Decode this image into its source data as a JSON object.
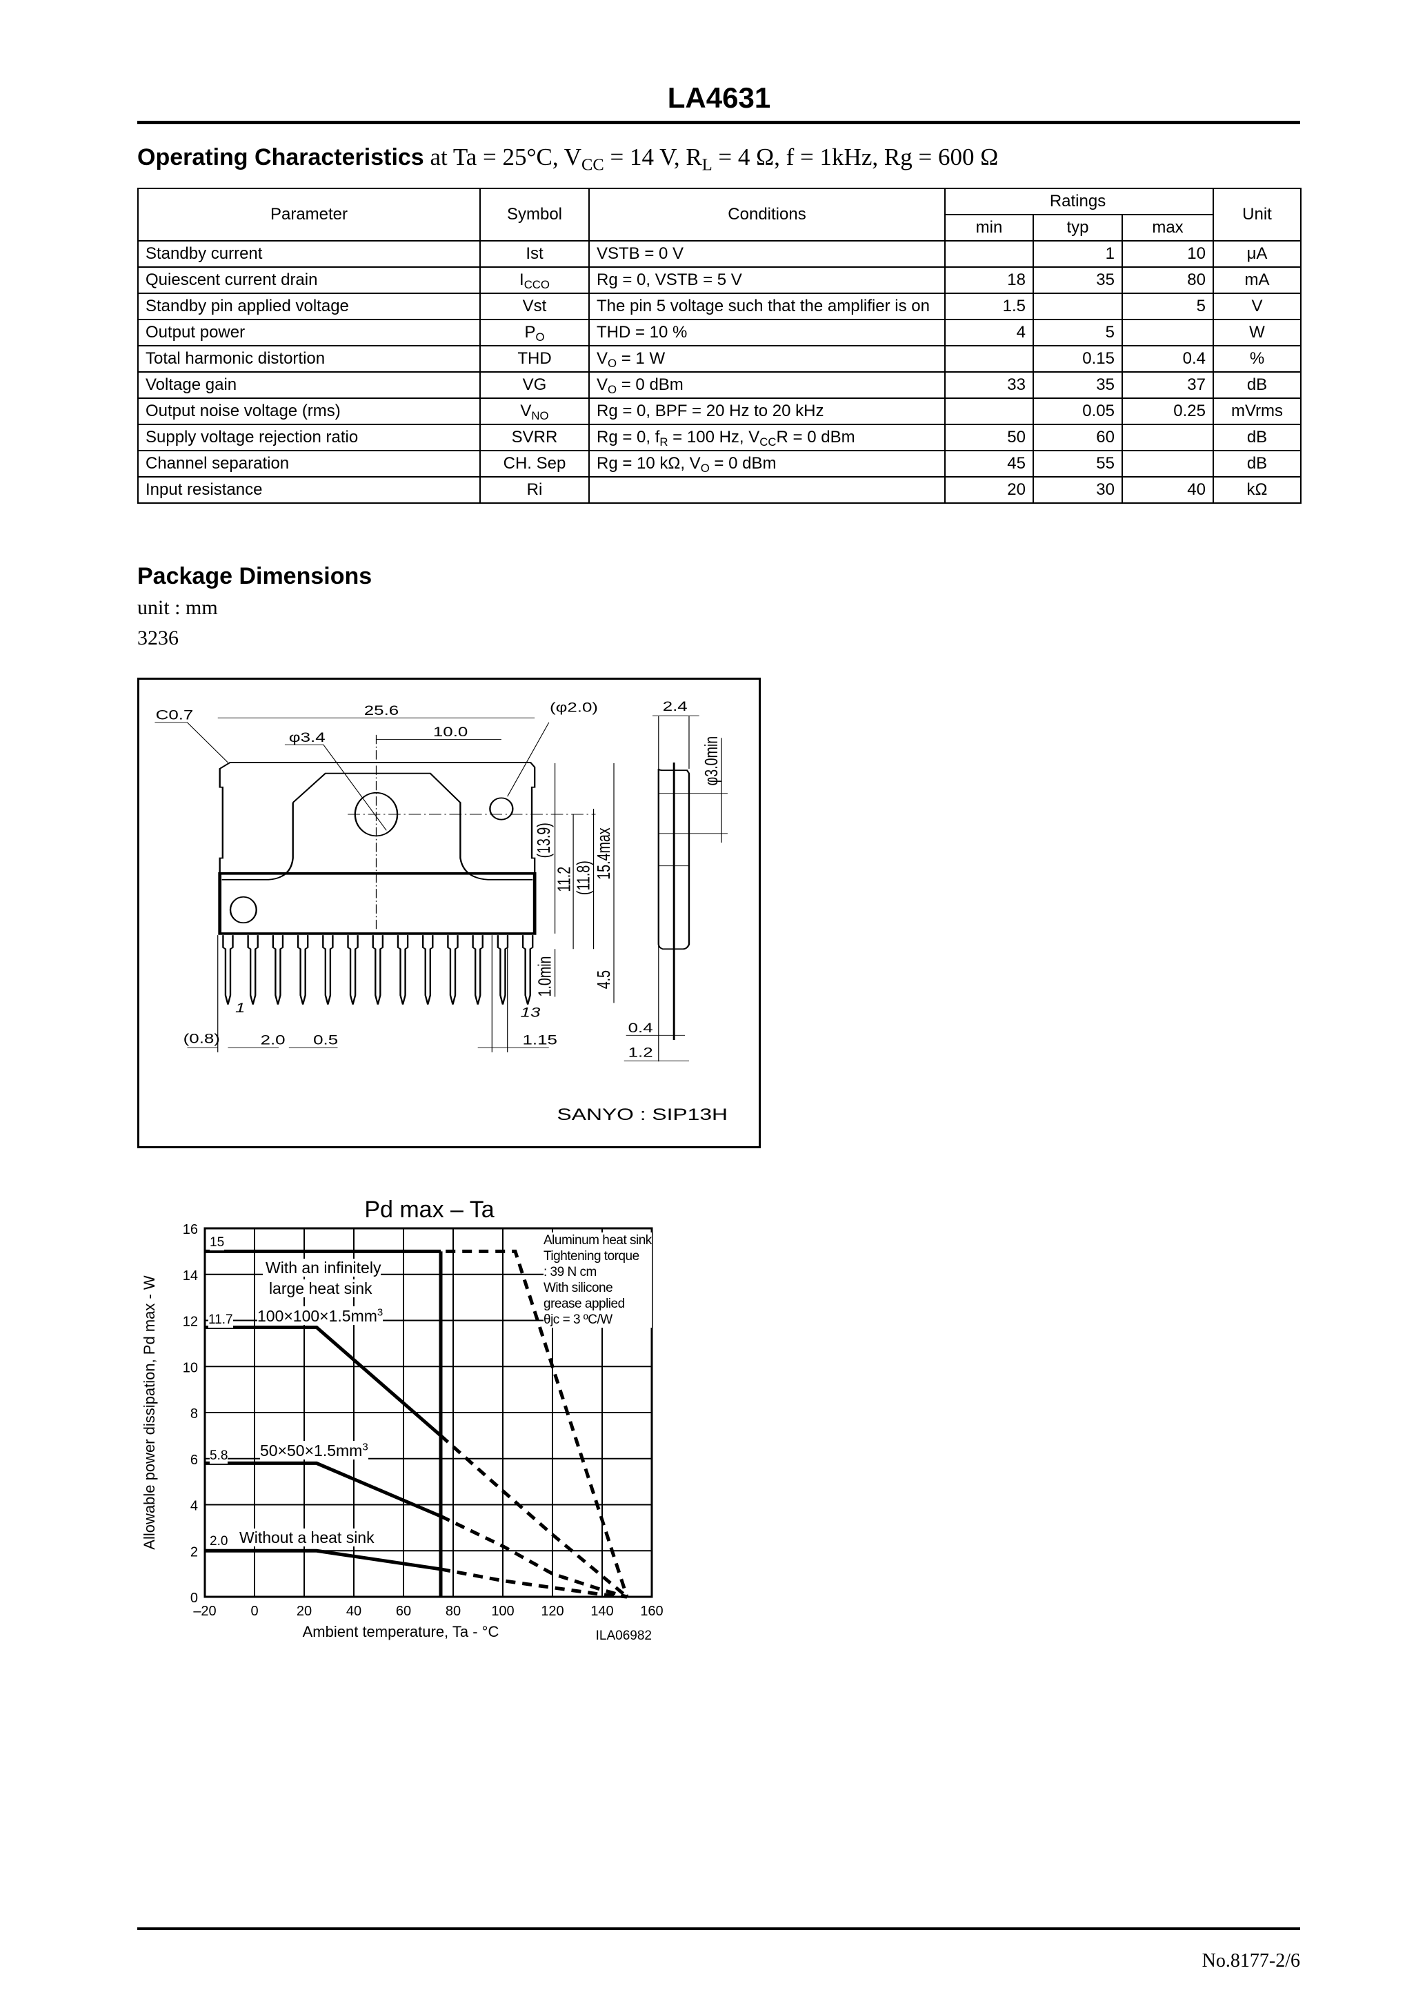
{
  "header": {
    "title": "LA4631"
  },
  "operating": {
    "heading_bold": "Operating Characteristics",
    "heading_rest": [
      {
        "t": " at Ta = 25°C, V"
      },
      {
        "s": "CC"
      },
      {
        "t": " = 14 V, R"
      },
      {
        "s": "L"
      },
      {
        "t": " = 4 Ω, f = 1kHz, Rg = 600 Ω"
      }
    ],
    "columns": {
      "parameter": "Parameter",
      "symbol": "Symbol",
      "conditions": "Conditions",
      "ratings": "Ratings",
      "min": "min",
      "typ": "typ",
      "max": "max",
      "unit": "Unit"
    },
    "rows": [
      {
        "parameter": "Standby current",
        "symbol": [
          {
            "t": "Ist"
          }
        ],
        "conditions": [
          {
            "t": "VSTB = 0 V"
          }
        ],
        "min": "",
        "typ": "1",
        "max": "10",
        "unit": "μA"
      },
      {
        "parameter": "Quiescent current drain",
        "symbol": [
          {
            "t": "I"
          },
          {
            "s": "CCO"
          }
        ],
        "conditions": [
          {
            "t": "Rg = 0, VSTB = 5 V"
          }
        ],
        "min": "18",
        "typ": "35",
        "max": "80",
        "unit": "mA"
      },
      {
        "parameter": "Standby pin applied voltage",
        "symbol": [
          {
            "t": "Vst"
          }
        ],
        "conditions": [
          {
            "t": "The pin 5 voltage such that the amplifier is on"
          }
        ],
        "min": "1.5",
        "typ": "",
        "max": "5",
        "unit": "V"
      },
      {
        "parameter": "Output power",
        "symbol": [
          {
            "t": "P"
          },
          {
            "s": "O"
          }
        ],
        "conditions": [
          {
            "t": "THD = 10 %"
          }
        ],
        "min": "4",
        "typ": "5",
        "max": "",
        "unit": "W"
      },
      {
        "parameter": "Total harmonic distortion",
        "symbol": [
          {
            "t": "THD"
          }
        ],
        "conditions": [
          {
            "t": "V"
          },
          {
            "s": "O"
          },
          {
            "t": " = 1 W"
          }
        ],
        "min": "",
        "typ": "0.15",
        "max": "0.4",
        "unit": "%"
      },
      {
        "parameter": "Voltage gain",
        "symbol": [
          {
            "t": "VG"
          }
        ],
        "conditions": [
          {
            "t": "V"
          },
          {
            "s": "O"
          },
          {
            "t": " = 0 dBm"
          }
        ],
        "min": "33",
        "typ": "35",
        "max": "37",
        "unit": "dB"
      },
      {
        "parameter": "Output noise voltage (rms)",
        "symbol": [
          {
            "t": "V"
          },
          {
            "s": "NO"
          }
        ],
        "conditions": [
          {
            "t": "Rg = 0, BPF = 20 Hz to 20 kHz"
          }
        ],
        "min": "",
        "typ": "0.05",
        "max": "0.25",
        "unit": "mVrms"
      },
      {
        "parameter": "Supply voltage rejection ratio",
        "symbol": [
          {
            "t": "SVRR"
          }
        ],
        "conditions": [
          {
            "t": "Rg = 0, f"
          },
          {
            "s": "R"
          },
          {
            "t": " = 100 Hz, V"
          },
          {
            "s": "CC"
          },
          {
            "t": "R = 0 dBm"
          }
        ],
        "min": "50",
        "typ": "60",
        "max": "",
        "unit": "dB"
      },
      {
        "parameter": "Channel separation",
        "symbol": [
          {
            "t": "CH. Sep"
          }
        ],
        "conditions": [
          {
            "t": "Rg = 10 kΩ, V"
          },
          {
            "s": "O"
          },
          {
            "t": " = 0 dBm"
          }
        ],
        "min": "45",
        "typ": "55",
        "max": "",
        "unit": "dB"
      },
      {
        "parameter": "Input resistance",
        "symbol": [
          {
            "t": "Ri"
          }
        ],
        "conditions": [],
        "min": "20",
        "typ": "30",
        "max": "40",
        "unit": "kΩ"
      }
    ]
  },
  "package": {
    "heading": "Package Dimensions",
    "unit": "unit : mm",
    "code": "3236",
    "drawing_labels": {
      "chamfer": "C0.7",
      "width": "25.6",
      "hole_pitch": "10.0",
      "hole_dia": "φ3.4",
      "small_hole": "(φ2.0)",
      "h139": "(13.9)",
      "h112": "11.2",
      "h118": "(11.8)",
      "h154": "15.4max",
      "lead_min": "1.0min",
      "lead_len": "4.5",
      "pin1": "1",
      "pin13": "13",
      "d08": "(0.8)",
      "pitch": "2.0",
      "lead_w": "0.5",
      "d115": "1.15",
      "thick": "2.4",
      "side_hole": "φ3.0min",
      "d04": "0.4",
      "d12": "1.2"
    },
    "caption": "SANYO : SIP13H"
  },
  "chart_data": {
    "type": "line",
    "title": "Pd max  –  Ta",
    "xlabel": "Ambient temperature, Ta - °C",
    "ylabel": "Allowable power dissipation, Pd max - W",
    "figure_id": "ILA06982",
    "xlim": [
      -20,
      160
    ],
    "ylim": [
      0,
      16
    ],
    "xticks": [
      -20,
      0,
      20,
      40,
      60,
      80,
      100,
      120,
      140,
      160
    ],
    "xtick_labels": [
      "–20",
      "0",
      "20",
      "40",
      "60",
      "80",
      "100",
      "120",
      "140",
      "160"
    ],
    "yticks": [
      0,
      2,
      4,
      6,
      8,
      10,
      12,
      14,
      16
    ],
    "grid": true,
    "series": [
      {
        "name": "With an infinitely large heat sink",
        "value_label": "15",
        "solid": [
          [
            -20,
            15
          ],
          [
            75,
            15
          ]
        ],
        "dashed": [
          [
            77,
            15
          ],
          [
            105,
            15
          ],
          [
            150,
            0
          ]
        ]
      },
      {
        "name": "100×100×1.5mm3",
        "value_label": "11.7",
        "solid": [
          [
            -20,
            11.7
          ],
          [
            25,
            11.7
          ],
          [
            75,
            7
          ]
        ],
        "dashed": [
          [
            75,
            7
          ],
          [
            100,
            4.6
          ],
          [
            120,
            2.7
          ],
          [
            140,
            0.9
          ],
          [
            150,
            0
          ]
        ]
      },
      {
        "name": "50×50×1.5mm3",
        "value_label": "5.8",
        "solid": [
          [
            -20,
            5.8
          ],
          [
            25,
            5.8
          ],
          [
            75,
            3.5
          ]
        ],
        "dashed": [
          [
            75,
            3.5
          ],
          [
            100,
            2.2
          ],
          [
            120,
            1.0
          ],
          [
            140,
            0.3
          ],
          [
            150,
            0
          ]
        ]
      },
      {
        "name": "Without a heat sink",
        "value_label": "2.0",
        "solid": [
          [
            -20,
            2.0
          ],
          [
            25,
            2.0
          ],
          [
            75,
            1.2
          ]
        ],
        "dashed": [
          [
            75,
            1.2
          ],
          [
            100,
            0.7
          ],
          [
            120,
            0.4
          ],
          [
            140,
            0.1
          ],
          [
            150,
            0
          ]
        ]
      }
    ],
    "vertical_limit_x": 75,
    "annotation": [
      "Aluminum heat sink",
      "Tightening torque",
      ": 39 N cm",
      "With silicone",
      "grease applied",
      "θjc = 3 ºC/W"
    ]
  },
  "footer": {
    "doc_no": "No.8177-2/6"
  }
}
